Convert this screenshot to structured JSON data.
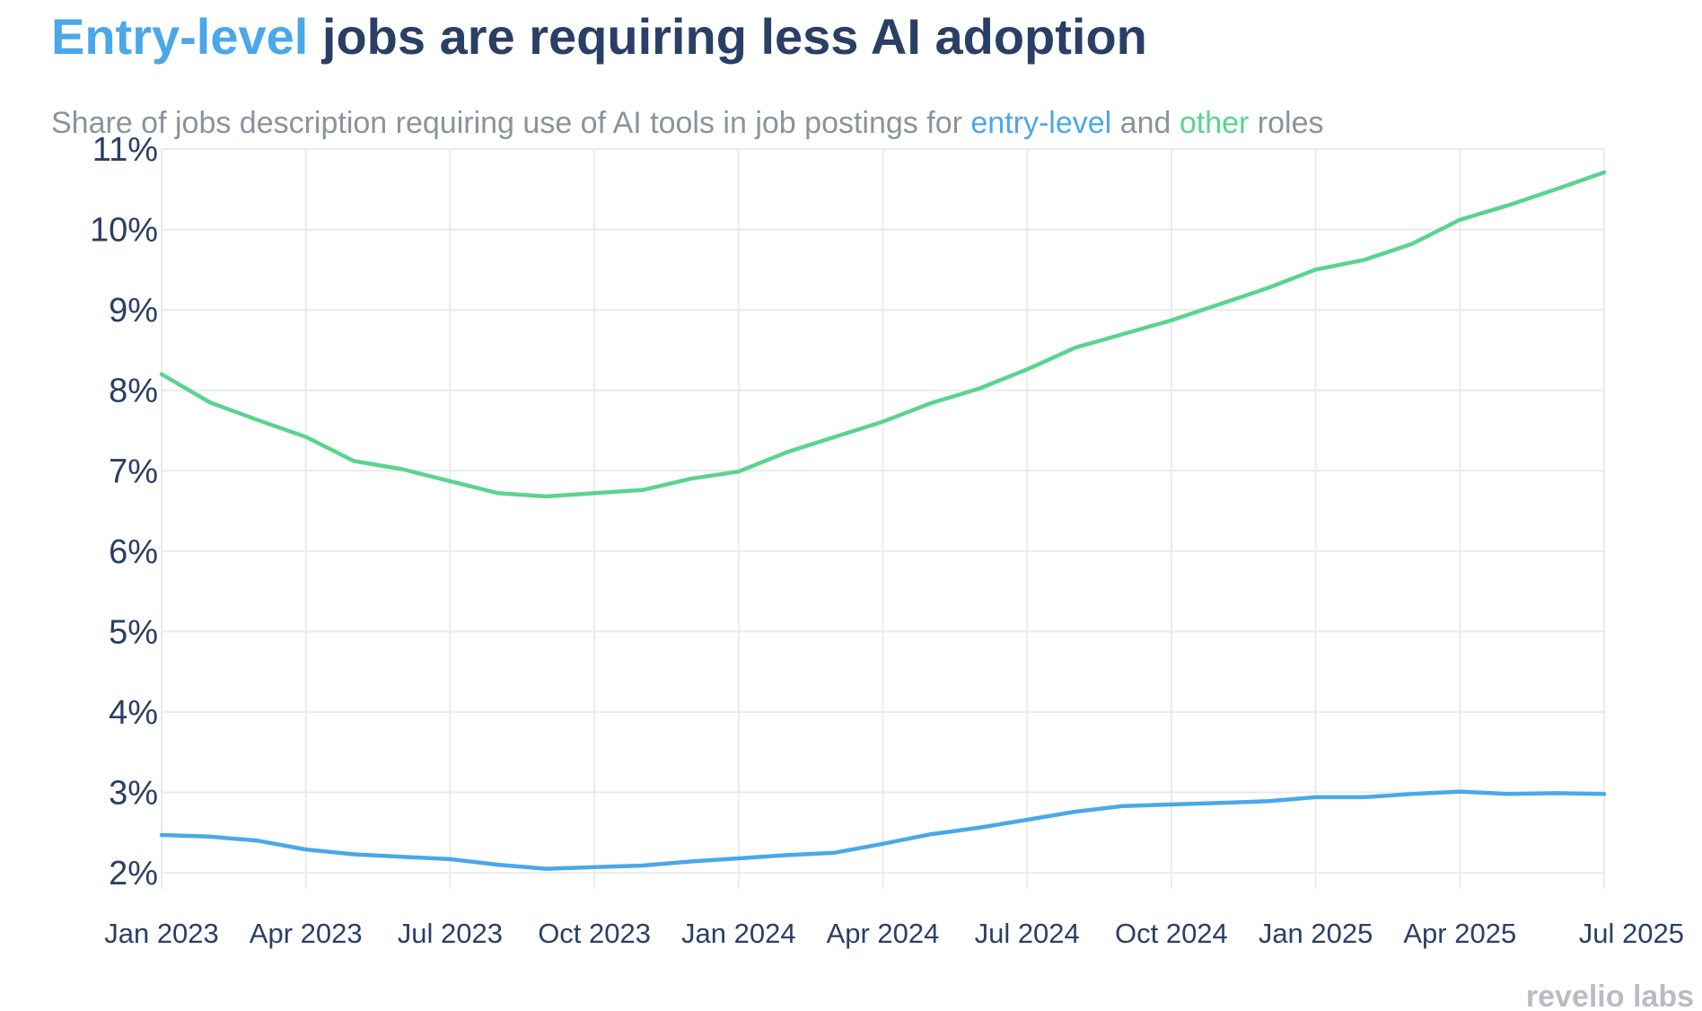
{
  "title": {
    "highlight": "Entry-level",
    "rest": " jobs are requiring less AI adoption"
  },
  "subtitle": {
    "part1": "Share of jobs description requiring use of AI tools in job postings for ",
    "entry_word": "entry-level",
    "part2": " and ",
    "other_word": "other",
    "part3": " roles"
  },
  "logo": {
    "text": "revelio labs"
  },
  "colors": {
    "entry_level": "#4aa8ea",
    "other": "#5ad48e",
    "title_dark": "#2a3f66",
    "subtitle_gray": "#8a939c",
    "axis_text": "#2a3f66",
    "grid": "#e9ebee",
    "logo_gray": "#b9bdc2"
  },
  "chart_data": {
    "type": "line",
    "title": "Entry-level jobs are requiring less AI adoption",
    "subtitle": "Share of jobs description requiring use of AI tools in job postings for entry-level and other roles",
    "xlabel": "",
    "ylabel": "",
    "x": [
      "2023-01",
      "2023-02",
      "2023-03",
      "2023-04",
      "2023-05",
      "2023-06",
      "2023-07",
      "2023-08",
      "2023-09",
      "2023-10",
      "2023-11",
      "2023-12",
      "2024-01",
      "2024-02",
      "2024-03",
      "2024-04",
      "2024-05",
      "2024-06",
      "2024-07",
      "2024-08",
      "2024-09",
      "2024-10",
      "2024-11",
      "2024-12",
      "2025-01",
      "2025-02",
      "2025-03",
      "2025-04",
      "2025-05",
      "2025-06",
      "2025-07"
    ],
    "x_tick_labels": [
      "Jan 2023",
      "Apr 2023",
      "Jul 2023",
      "Oct 2023",
      "Jan 2024",
      "Apr 2024",
      "Jul 2024",
      "Oct 2024",
      "Jan 2025",
      "Apr 2025",
      "Jul 2025"
    ],
    "y_tick_values": [
      2,
      3,
      4,
      5,
      6,
      7,
      8,
      9,
      10,
      11
    ],
    "y_tick_labels": [
      "2%",
      "3%",
      "4%",
      "5%",
      "6%",
      "7%",
      "8%",
      "9%",
      "10%",
      "11%"
    ],
    "ylim": [
      1.8,
      11
    ],
    "grid": true,
    "legend": "none (colored words in subtitle)",
    "series": [
      {
        "key": "entry_level",
        "color": "#4aa8ea",
        "values": [
          2.47,
          2.45,
          2.4,
          2.29,
          2.23,
          2.2,
          2.17,
          2.1,
          2.05,
          2.07,
          2.09,
          2.14,
          2.18,
          2.22,
          2.25,
          2.36,
          2.48,
          2.56,
          2.66,
          2.76,
          2.83,
          2.85,
          2.87,
          2.89,
          2.94,
          2.94,
          2.98,
          3.01,
          2.98,
          2.99,
          2.98
        ]
      },
      {
        "key": "other",
        "color": "#5ad48e",
        "values": [
          8.2,
          7.85,
          7.63,
          7.42,
          7.12,
          7.02,
          6.87,
          6.72,
          6.68,
          6.72,
          6.76,
          6.9,
          6.99,
          7.23,
          7.42,
          7.61,
          7.84,
          8.02,
          8.26,
          8.53,
          8.7,
          8.87,
          9.07,
          9.27,
          9.5,
          9.62,
          9.82,
          10.12,
          10.3,
          10.5,
          10.71
        ]
      }
    ]
  }
}
